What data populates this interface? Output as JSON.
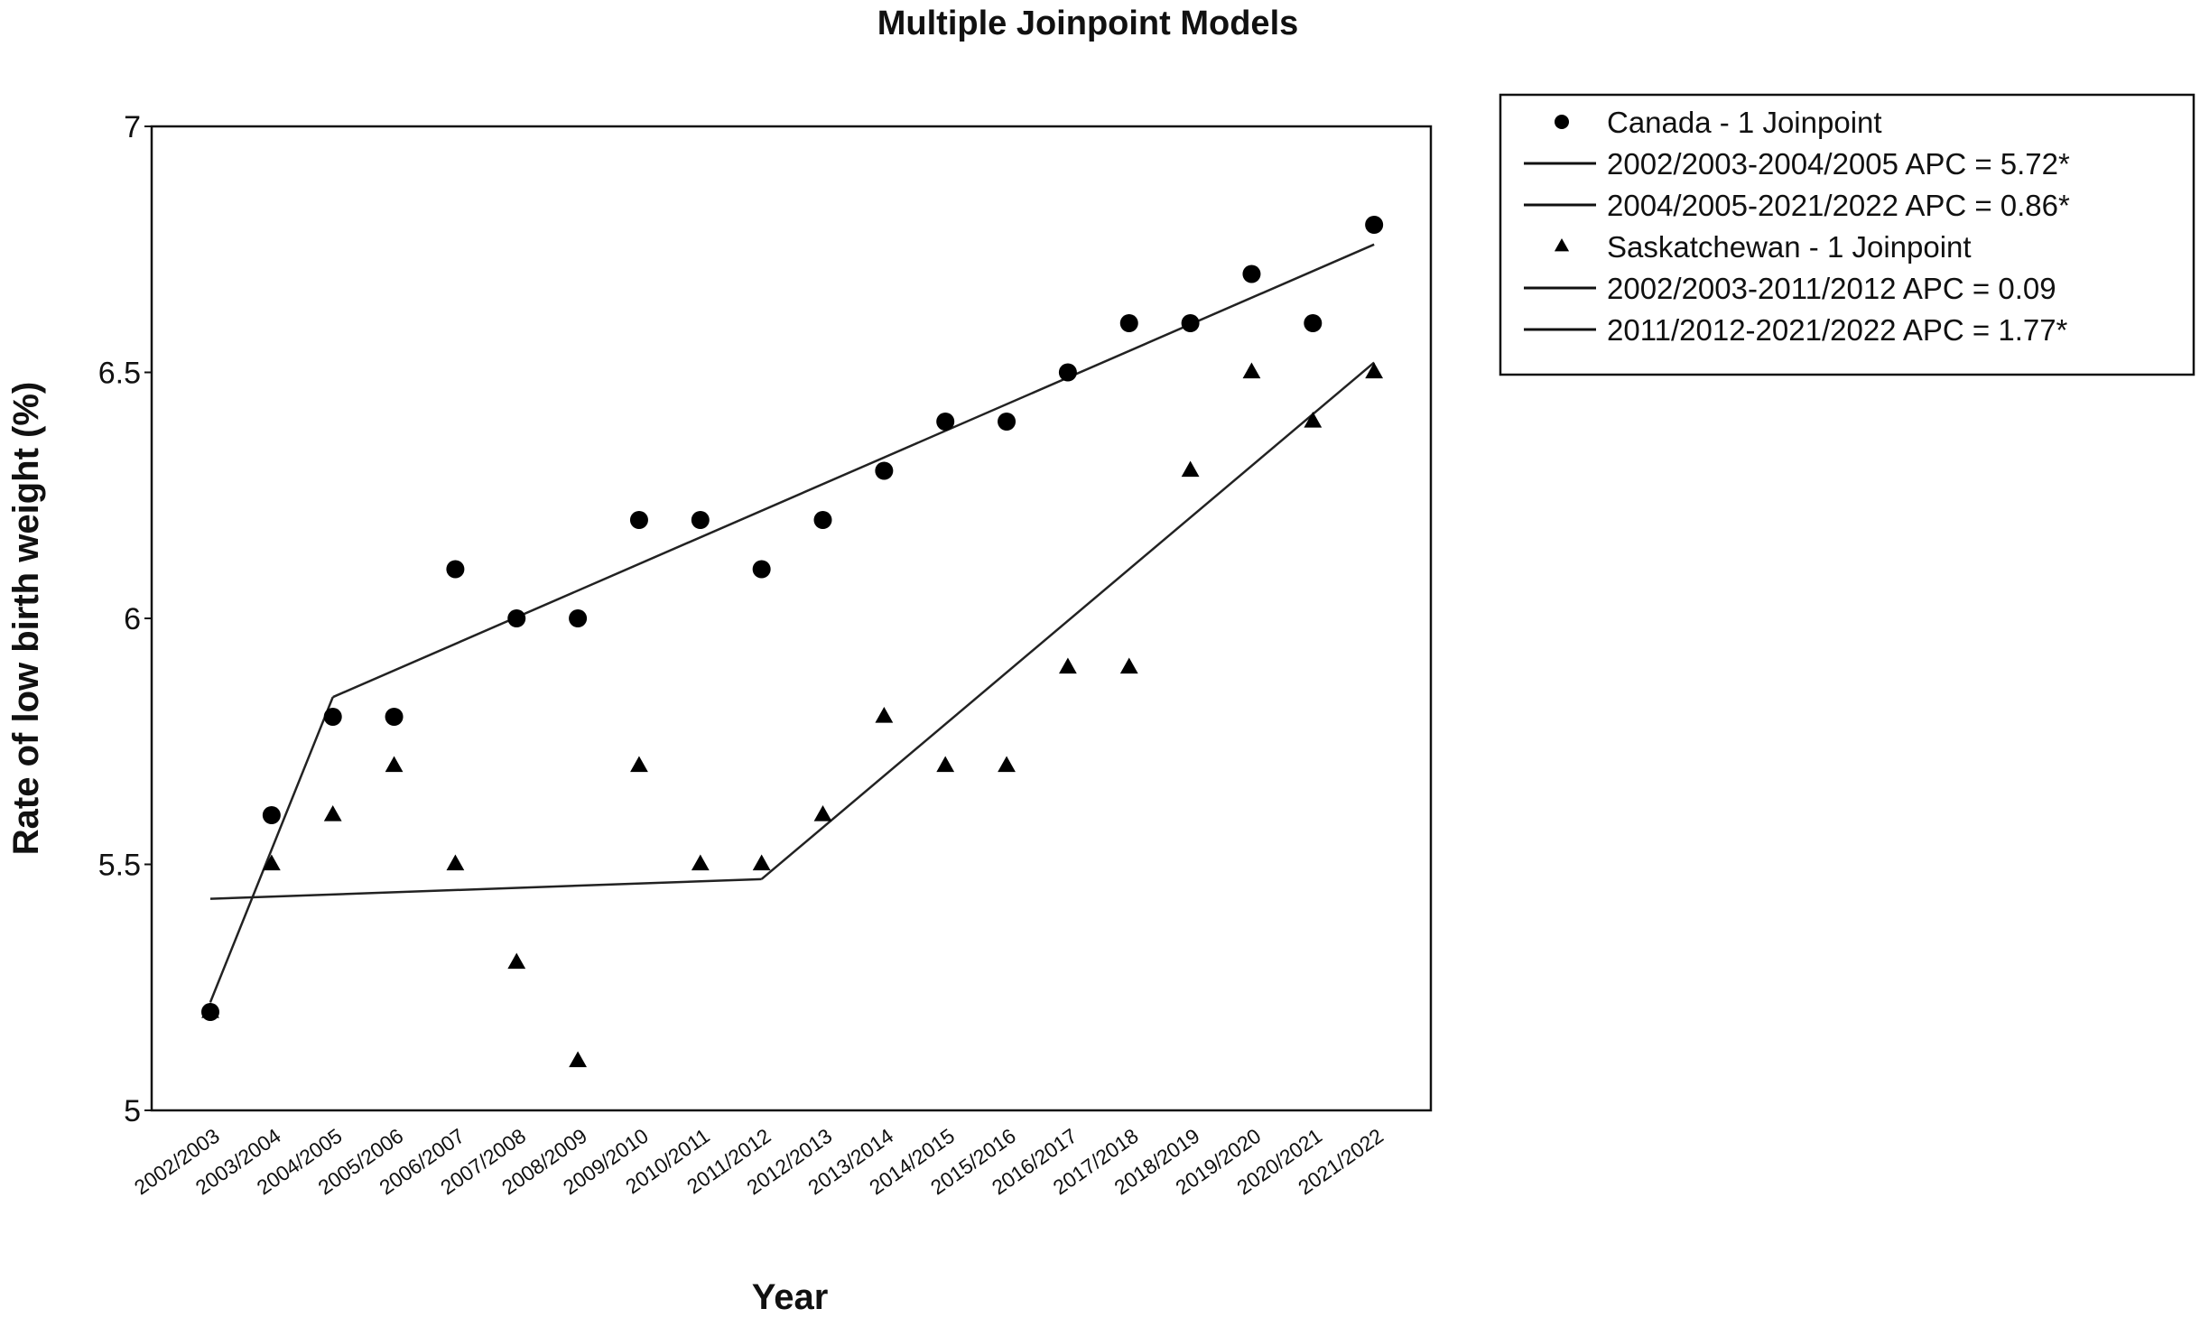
{
  "chart_data": {
    "type": "scatter",
    "title": "Multiple Joinpoint Models",
    "xlabel": "Year",
    "ylabel": "Rate of low birth weight (%)",
    "ylim": [
      5,
      7
    ],
    "yticks": [
      "5",
      "5.5",
      "6",
      "6.5",
      "7"
    ],
    "grid": false,
    "legend_position": "right",
    "categories": [
      "2002/2003",
      "2003/2004",
      "2004/2005",
      "2005/2006",
      "2006/2007",
      "2007/2008",
      "2008/2009",
      "2009/2010",
      "2010/2011",
      "2011/2012",
      "2012/2013",
      "2013/2014",
      "2014/2015",
      "2015/2016",
      "2016/2017",
      "2017/2018",
      "2018/2019",
      "2019/2020",
      "2020/2021",
      "2021/2022"
    ],
    "series": [
      {
        "name": "Canada - 1 Joinpoint",
        "marker": "circle",
        "values": [
          5.2,
          5.6,
          5.8,
          5.8,
          6.1,
          6.0,
          6.0,
          6.2,
          6.2,
          6.1,
          6.2,
          6.3,
          6.4,
          6.4,
          6.5,
          6.6,
          6.6,
          6.7,
          6.6,
          6.8
        ]
      },
      {
        "name": "Saskatchewan - 1 Joinpoint",
        "marker": "triangle",
        "values": [
          5.2,
          5.5,
          5.6,
          5.7,
          5.5,
          5.3,
          5.1,
          5.7,
          5.5,
          5.5,
          5.6,
          5.8,
          5.7,
          5.7,
          5.9,
          5.9,
          6.3,
          6.5,
          6.4,
          6.5
        ]
      }
    ],
    "trend_lines": [
      {
        "label": "2002/2003-2004/2005 APC  = 5.72*",
        "from": "2002/2003",
        "to": "2004/2005",
        "y_start": 5.22,
        "y_end": 5.84
      },
      {
        "label": "2004/2005-2021/2022 APC  = 0.86*",
        "from": "2004/2005",
        "to": "2021/2022",
        "y_start": 5.84,
        "y_end": 6.76
      },
      {
        "label": "2002/2003-2011/2012 APC  = 0.09",
        "from": "2002/2003",
        "to": "2011/2012",
        "y_start": 5.43,
        "y_end": 5.47
      },
      {
        "label": "2011/2012-2021/2022 APC  = 1.77*",
        "from": "2011/2012",
        "to": "2021/2022",
        "y_start": 5.47,
        "y_end": 6.52
      }
    ],
    "legend": [
      {
        "kind": "circle",
        "text": "Canada - 1 Joinpoint"
      },
      {
        "kind": "line",
        "text": "2002/2003-2004/2005 APC  = 5.72*"
      },
      {
        "kind": "line",
        "text": "2004/2005-2021/2022 APC  = 0.86*"
      },
      {
        "kind": "triangle",
        "text": "Saskatchewan - 1 Joinpoint"
      },
      {
        "kind": "line",
        "text": "2002/2003-2011/2012 APC  = 0.09"
      },
      {
        "kind": "line",
        "text": "2011/2012-2021/2022 APC  = 1.77*"
      }
    ]
  }
}
